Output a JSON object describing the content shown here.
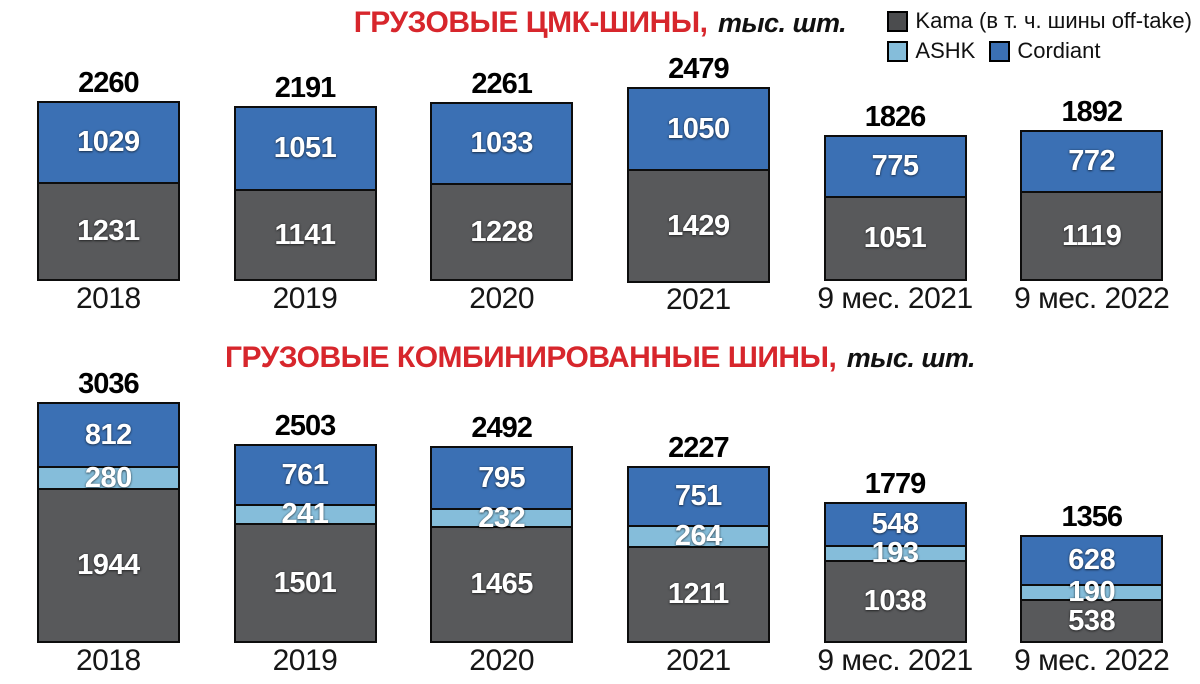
{
  "page": {
    "background": "#ffffff"
  },
  "legend": {
    "items": [
      {
        "label": "Kama (в т. ч. шины off-take)",
        "color": "#4b4c4e"
      },
      {
        "label": "ASHK",
        "color": "#85bdda"
      },
      {
        "label": "Cordiant",
        "color": "#3b70b4"
      }
    ]
  },
  "chart_data": [
    {
      "type": "bar",
      "stacked": true,
      "title": "ГРУЗОВЫЕ ЦМК-ШИНЫ,",
      "unit_label": "тыс. шт.",
      "title_color": "#d7262c",
      "grid": false,
      "legend_position": "top-right",
      "categories": [
        "2018",
        "2019",
        "2020",
        "2021",
        "9 мес. 2021",
        "9 мес. 2022"
      ],
      "series": [
        {
          "name": "Cordiant",
          "color": "#3b70b4",
          "values": [
            1029,
            1051,
            1033,
            1050,
            775,
            772
          ]
        },
        {
          "name": "Kama",
          "color": "#58595b",
          "values": [
            1231,
            1141,
            1228,
            1429,
            1051,
            1119
          ]
        }
      ],
      "totals": [
        2260,
        2191,
        2261,
        2479,
        1826,
        1892
      ]
    },
    {
      "type": "bar",
      "stacked": true,
      "title": "ГРУЗОВЫЕ КОМБИНИРОВАННЫЕ ШИНЫ,",
      "unit_label": "тыс. шт.",
      "title_color": "#d7262c",
      "grid": false,
      "categories": [
        "2018",
        "2019",
        "2020",
        "2021",
        "9 мес. 2021",
        "9 мес. 2022"
      ],
      "series": [
        {
          "name": "Cordiant",
          "color": "#3b70b4",
          "values": [
            812,
            761,
            795,
            751,
            548,
            628
          ]
        },
        {
          "name": "ASHK",
          "color": "#85bdda",
          "values": [
            280,
            241,
            232,
            264,
            193,
            190
          ]
        },
        {
          "name": "Kama",
          "color": "#58595b",
          "values": [
            1944,
            1501,
            1465,
            1211,
            1038,
            538
          ]
        }
      ],
      "totals": [
        3036,
        2503,
        2492,
        2227,
        1779,
        1356
      ]
    }
  ]
}
